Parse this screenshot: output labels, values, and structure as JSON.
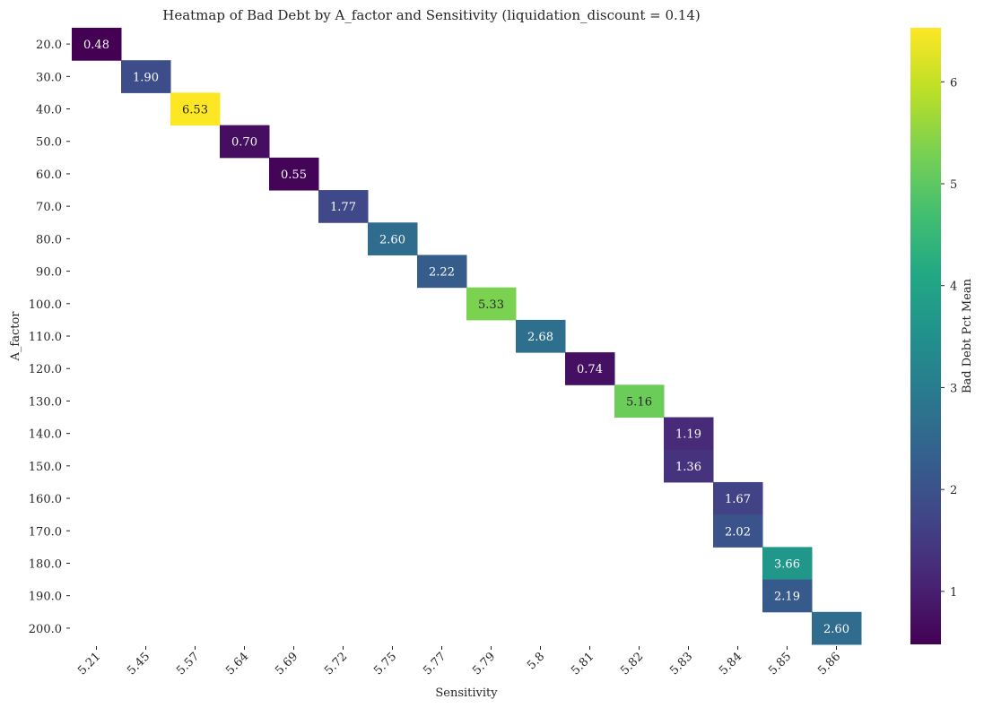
{
  "chart_data": {
    "type": "heatmap",
    "title": "Heatmap of Bad Debt by A_factor and Sensitivity (liquidation_discount = 0.14)",
    "xlabel": "Sensitivity",
    "ylabel": "A_factor",
    "x_categories": [
      "5.21",
      "5.45",
      "5.57",
      "5.64",
      "5.69",
      "5.72",
      "5.75",
      "5.77",
      "5.79",
      "5.8",
      "5.81",
      "5.82",
      "5.83",
      "5.84",
      "5.85",
      "5.86"
    ],
    "y_categories": [
      "20.0",
      "30.0",
      "40.0",
      "50.0",
      "60.0",
      "70.0",
      "80.0",
      "90.0",
      "100.0",
      "110.0",
      "120.0",
      "130.0",
      "140.0",
      "150.0",
      "160.0",
      "170.0",
      "180.0",
      "190.0",
      "200.0"
    ],
    "cells": [
      {
        "y": "20.0",
        "x": "5.21",
        "value": 0.48,
        "label": "0.48"
      },
      {
        "y": "30.0",
        "x": "5.45",
        "value": 1.9,
        "label": "1.90"
      },
      {
        "y": "40.0",
        "x": "5.57",
        "value": 6.53,
        "label": "6.53"
      },
      {
        "y": "50.0",
        "x": "5.64",
        "value": 0.7,
        "label": "0.70"
      },
      {
        "y": "60.0",
        "x": "5.69",
        "value": 0.55,
        "label": "0.55"
      },
      {
        "y": "70.0",
        "x": "5.72",
        "value": 1.77,
        "label": "1.77"
      },
      {
        "y": "80.0",
        "x": "5.75",
        "value": 2.6,
        "label": "2.60"
      },
      {
        "y": "90.0",
        "x": "5.77",
        "value": 2.22,
        "label": "2.22"
      },
      {
        "y": "100.0",
        "x": "5.79",
        "value": 5.33,
        "label": "5.33"
      },
      {
        "y": "110.0",
        "x": "5.8",
        "value": 2.68,
        "label": "2.68"
      },
      {
        "y": "120.0",
        "x": "5.81",
        "value": 0.74,
        "label": "0.74"
      },
      {
        "y": "130.0",
        "x": "5.82",
        "value": 5.16,
        "label": "5.16"
      },
      {
        "y": "140.0",
        "x": "5.83",
        "value": 1.19,
        "label": "1.19"
      },
      {
        "y": "150.0",
        "x": "5.83",
        "value": 1.36,
        "label": "1.36"
      },
      {
        "y": "160.0",
        "x": "5.84",
        "value": 1.67,
        "label": "1.67"
      },
      {
        "y": "170.0",
        "x": "5.84",
        "value": 2.02,
        "label": "2.02"
      },
      {
        "y": "180.0",
        "x": "5.85",
        "value": 3.66,
        "label": "3.66"
      },
      {
        "y": "190.0",
        "x": "5.85",
        "value": 2.19,
        "label": "2.19"
      },
      {
        "y": "200.0",
        "x": "5.86",
        "value": 2.6,
        "label": "2.60"
      }
    ],
    "colormap": "viridis",
    "colorbar": {
      "label": "Bad Debt Pct Mean",
      "range": [
        0.48,
        6.53
      ],
      "ticks": [
        1,
        2,
        3,
        4,
        5,
        6
      ],
      "placement": "right"
    },
    "grid": false
  }
}
